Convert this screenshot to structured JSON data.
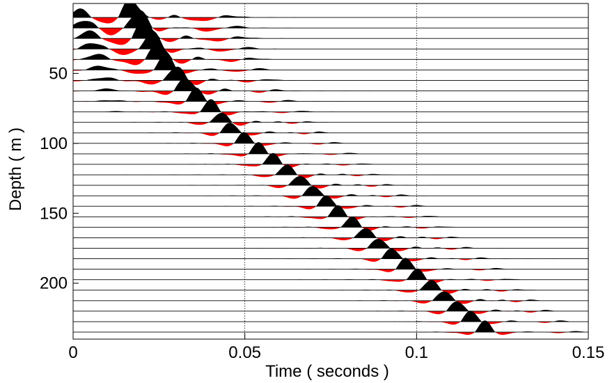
{
  "chart_data": {
    "type": "wiggle-trace",
    "title": "",
    "xlabel": "Time ( seconds )",
    "ylabel": "Depth ( m )",
    "xlim": [
      0,
      0.15
    ],
    "ylim": [
      240,
      0
    ],
    "xticks": [
      0,
      0.05,
      0.1,
      0.15
    ],
    "xtick_labels": [
      "0",
      "0.05",
      "0.1",
      "0.15"
    ],
    "yticks": [
      50,
      100,
      150,
      200
    ],
    "ytick_labels": [
      "50",
      "100",
      "150",
      "200"
    ],
    "grid": "vertical dotted lines at x = 0.05 and x = 0.1",
    "positive_fill_color": "#000000",
    "negative_fill_color": "#ff0000",
    "trace_line_color": "#000000",
    "trace_depths": [
      10,
      17.5,
      25,
      32.5,
      40,
      47.5,
      55,
      62.5,
      70,
      77.5,
      85,
      92.5,
      100,
      107.5,
      115,
      122.5,
      130,
      137.5,
      145,
      152.5,
      160,
      167.5,
      175,
      182.5,
      190,
      197.5,
      205,
      212.5,
      220,
      227.5,
      235
    ],
    "first_arrival_times": [
      0.017,
      0.019,
      0.021,
      0.023,
      0.025,
      0.027,
      0.03,
      0.033,
      0.036,
      0.04,
      0.043,
      0.046,
      0.05,
      0.054,
      0.058,
      0.062,
      0.066,
      0.07,
      0.074,
      0.077,
      0.081,
      0.085,
      0.089,
      0.093,
      0.097,
      0.1,
      0.104,
      0.108,
      0.112,
      0.116,
      0.12
    ]
  }
}
